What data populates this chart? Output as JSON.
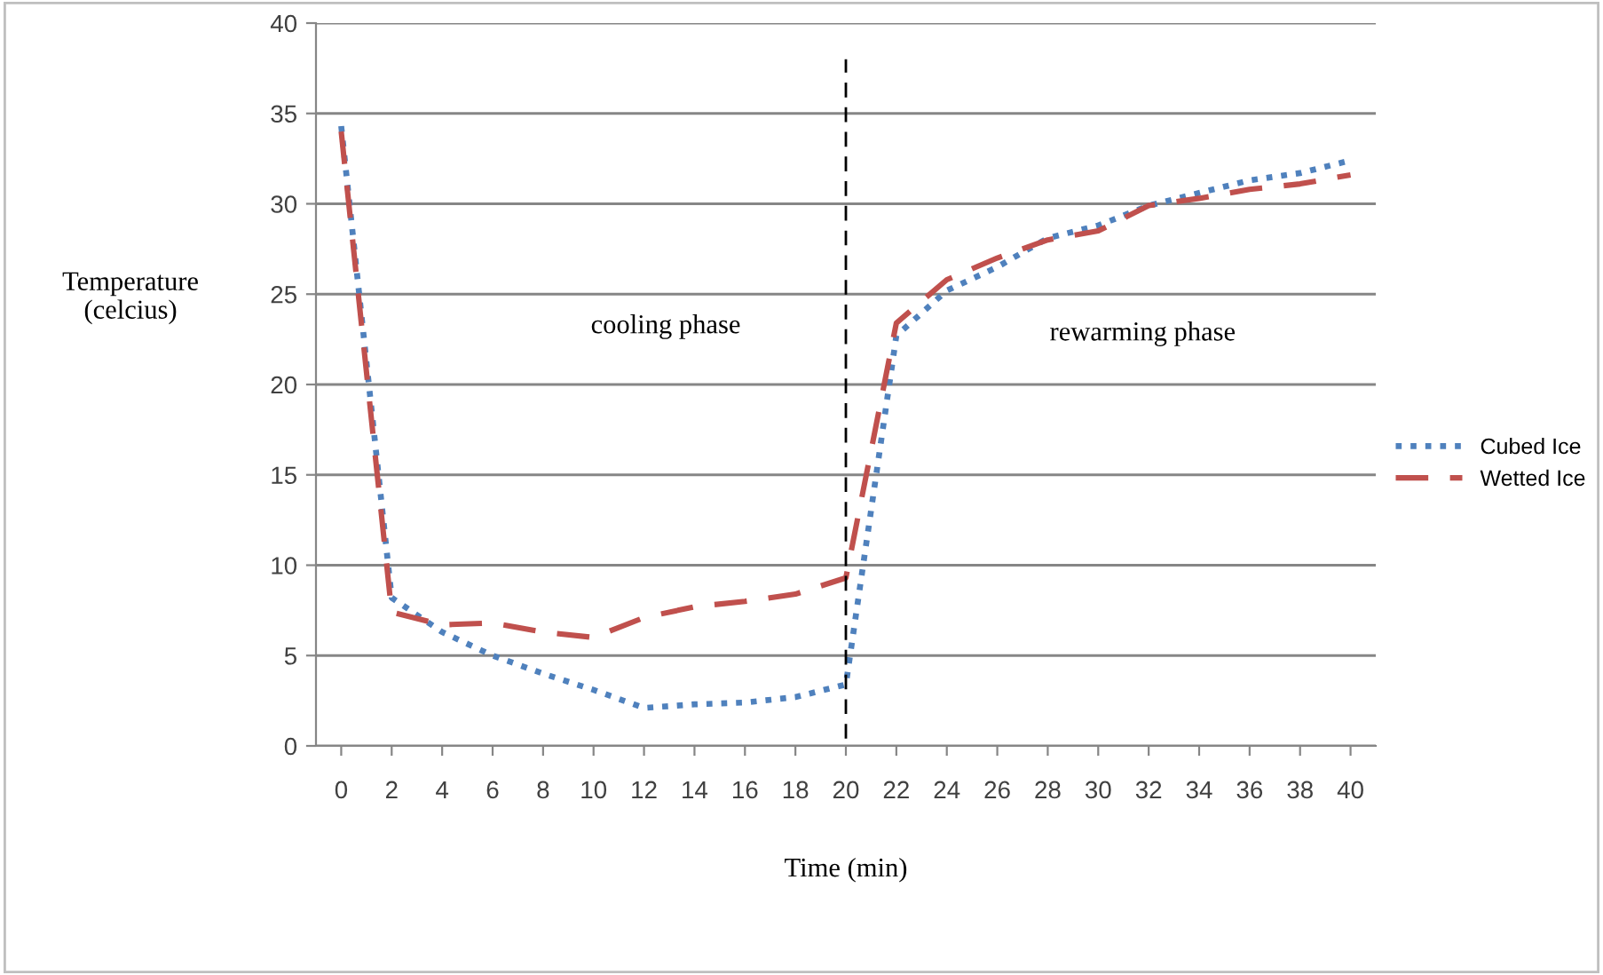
{
  "chart_data": {
    "type": "line",
    "xlabel": "Time (min)",
    "ylabel": "Temperature\n(celcius)",
    "categories": [
      "0",
      "2",
      "4",
      "6",
      "8",
      "10",
      "12",
      "14",
      "16",
      "18",
      "20",
      "22",
      "24",
      "26",
      "28",
      "30",
      "32",
      "34",
      "36",
      "38",
      "40"
    ],
    "series": [
      {
        "name": "Cubed Ice",
        "color": "#4f81bd",
        "line_style": "dotted",
        "values": [
          34.3,
          8.2,
          6.3,
          5.0,
          4.0,
          3.1,
          2.1,
          2.3,
          2.4,
          2.7,
          3.4,
          22.7,
          25.2,
          26.5,
          28.1,
          28.8,
          29.9,
          30.6,
          31.3,
          31.7,
          32.4
        ]
      },
      {
        "name": "Wetted Ice",
        "color": "#c0504d",
        "line_style": "dashed",
        "values": [
          34.0,
          7.4,
          6.7,
          6.8,
          6.3,
          6.0,
          7.1,
          7.7,
          8.0,
          8.4,
          9.3,
          23.4,
          25.8,
          27.0,
          28.0,
          28.5,
          29.9,
          30.3,
          30.8,
          31.1,
          31.6
        ]
      }
    ],
    "ylim": [
      0,
      40
    ],
    "yticks": [
      0,
      5,
      10,
      15,
      20,
      25,
      30,
      35,
      40
    ],
    "grid": "y",
    "legend": "right",
    "marker": "none",
    "ref_lines": [
      {
        "axis": "x",
        "value": "20",
        "color": "#000000",
        "line_style": "dashed"
      }
    ],
    "annotations": [
      "cooling phase",
      "rewarming phase"
    ]
  }
}
